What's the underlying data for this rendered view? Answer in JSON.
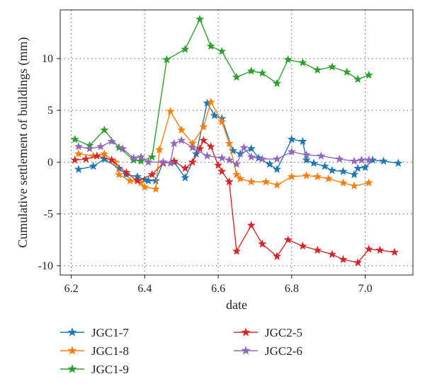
{
  "chart_data": {
    "type": "line",
    "title": "",
    "xlabel": "date",
    "ylabel": "Cumulative settlement of buildings (mm)",
    "xlim": [
      6.17,
      7.13
    ],
    "ylim": [
      -10.9,
      14.7
    ],
    "xticks": [
      6.2,
      6.4,
      6.6,
      6.8,
      7.0
    ],
    "xtick_labels": [
      "6.2",
      "6.4",
      "6.6",
      "6.8",
      "7.0"
    ],
    "yticks": [
      -10,
      -5,
      0,
      5,
      10
    ],
    "ytick_labels": [
      "-10",
      "-5",
      "0",
      "5",
      "10"
    ],
    "grid": true,
    "legend_position": "bottom",
    "marker": "star",
    "series": [
      {
        "name": "JGC1-7",
        "color": "#1f77b4",
        "x": [
          6.22,
          6.26,
          6.29,
          6.33,
          6.35,
          6.38,
          6.4,
          6.41,
          6.43,
          6.45,
          6.48,
          6.51,
          6.54,
          6.57,
          6.59,
          6.61,
          6.64,
          6.66,
          6.69,
          6.71,
          6.74,
          6.76,
          6.8,
          6.83,
          6.84,
          6.86,
          6.89,
          6.91,
          6.94,
          6.97,
          6.98,
          7.0,
          7.02,
          7.05,
          7.09
        ],
        "y": [
          -0.7,
          -0.4,
          0.3,
          -0.6,
          -1.2,
          -1.4,
          -1.7,
          -1.8,
          -1.8,
          0.0,
          0.0,
          -1.5,
          0.8,
          5.7,
          4.5,
          4.2,
          1.1,
          0.8,
          1.3,
          0.4,
          -0.2,
          -0.7,
          2.2,
          2.0,
          0.2,
          -0.1,
          -0.4,
          -0.8,
          -0.9,
          -1.2,
          -0.6,
          -0.5,
          0.2,
          0.1,
          -0.1
        ]
      },
      {
        "name": "JGC1-8",
        "color": "#ff7f0e",
        "x": [
          6.22,
          6.26,
          6.29,
          6.32,
          6.33,
          6.36,
          6.39,
          6.4,
          6.43,
          6.44,
          6.47,
          6.5,
          6.53,
          6.56,
          6.58,
          6.61,
          6.63,
          6.65,
          6.66,
          6.69,
          6.73,
          6.76,
          6.8,
          6.84,
          6.87,
          6.9,
          6.94,
          6.97,
          7.01
        ],
        "y": [
          0.8,
          0.6,
          0.8,
          0.0,
          -1.2,
          -1.8,
          -2.0,
          -2.4,
          -2.6,
          1.2,
          4.9,
          3.1,
          1.8,
          3.4,
          5.8,
          3.9,
          1.8,
          -1.2,
          -1.6,
          -1.9,
          -1.9,
          -2.2,
          -1.4,
          -1.3,
          -1.4,
          -1.6,
          -2.0,
          -2.3,
          -2.0
        ]
      },
      {
        "name": "JGC1-9",
        "color": "#2ca02c",
        "x": [
          6.21,
          6.25,
          6.29,
          6.33,
          6.37,
          6.39,
          6.42,
          6.46,
          6.51,
          6.55,
          6.58,
          6.61,
          6.65,
          6.69,
          6.72,
          6.76,
          6.79,
          6.83,
          6.87,
          6.91,
          6.95,
          6.98,
          7.01
        ],
        "y": [
          2.2,
          1.6,
          3.1,
          1.4,
          0.2,
          0.1,
          0.5,
          9.9,
          10.9,
          13.8,
          11.2,
          10.7,
          8.2,
          8.8,
          8.6,
          7.6,
          9.9,
          9.6,
          8.9,
          9.2,
          8.7,
          8.0,
          8.4
        ]
      },
      {
        "name": "JGC2-5",
        "color": "#d62728",
        "x": [
          6.21,
          6.24,
          6.27,
          6.31,
          6.35,
          6.38,
          6.42,
          6.45,
          6.48,
          6.51,
          6.53,
          6.55,
          6.56,
          6.58,
          6.6,
          6.61,
          6.63,
          6.65,
          6.69,
          6.72,
          6.76,
          6.79,
          6.83,
          6.87,
          6.91,
          6.94,
          6.98,
          7.01,
          7.04,
          7.08
        ],
        "y": [
          0.2,
          0.3,
          0.6,
          0.2,
          -1.0,
          -1.8,
          -1.2,
          -0.1,
          0.1,
          -0.6,
          0.0,
          1.3,
          2.1,
          1.5,
          -0.3,
          -0.9,
          -1.9,
          -8.6,
          -6.1,
          -7.9,
          -9.1,
          -7.5,
          -8.1,
          -8.5,
          -8.9,
          -9.4,
          -9.7,
          -8.4,
          -8.5,
          -8.7
        ]
      },
      {
        "name": "JGC2-6",
        "color": "#9467bd",
        "x": [
          6.22,
          6.25,
          6.28,
          6.31,
          6.34,
          6.37,
          6.39,
          6.41,
          6.45,
          6.47,
          6.48,
          6.5,
          6.53,
          6.57,
          6.61,
          6.63,
          6.65,
          6.67,
          6.69,
          6.72,
          6.76,
          6.8,
          6.84,
          6.88,
          6.93,
          6.97,
          6.99,
          7.01
        ],
        "y": [
          1.5,
          1.3,
          1.5,
          2.0,
          1.3,
          0.4,
          0.5,
          0.0,
          0.0,
          -0.1,
          1.8,
          2.1,
          1.4,
          0.6,
          0.4,
          0.2,
          -0.2,
          1.4,
          0.5,
          0.3,
          0.3,
          1.0,
          0.7,
          0.6,
          0.3,
          0.1,
          0.2,
          0.2
        ]
      }
    ]
  }
}
